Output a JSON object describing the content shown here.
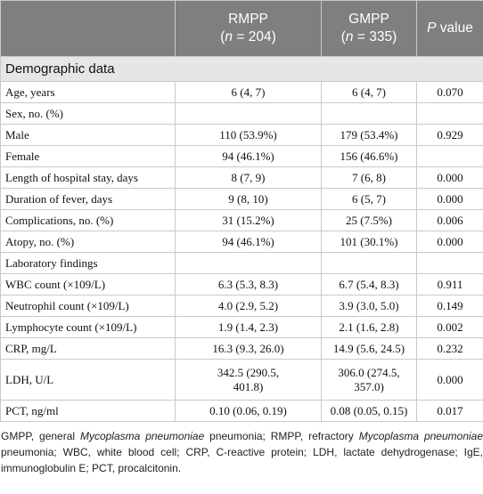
{
  "header": {
    "col1": "",
    "rmpp_line1": "RMPP",
    "rmpp_n": "n",
    "rmpp_line2_rest": " = 204)",
    "gmpp_line1": "GMPP",
    "gmpp_n": "n",
    "gmpp_line2_rest": " = 335)",
    "pvalue_p": "P",
    "pvalue_rest": " value"
  },
  "section": "Demographic data",
  "rows": [
    {
      "label": "Age, years",
      "rmpp": "6 (4, 7)",
      "gmpp": "6 (4, 7)",
      "p": "0.070"
    },
    {
      "label": "Sex, no. (%)",
      "rmpp": "",
      "gmpp": "",
      "p": ""
    },
    {
      "label": "Male",
      "rmpp": "110 (53.9%)",
      "gmpp": "179 (53.4%)",
      "p": "0.929"
    },
    {
      "label": "Female",
      "rmpp": "94 (46.1%)",
      "gmpp": "156 (46.6%)",
      "p": ""
    },
    {
      "label": "Length of hospital stay, days",
      "rmpp": "8 (7, 9)",
      "gmpp": "7 (6, 8)",
      "p": "0.000"
    },
    {
      "label": "Duration of fever, days",
      "rmpp": "9 (8, 10)",
      "gmpp": "6 (5, 7)",
      "p": "0.000"
    },
    {
      "label": "Complications, no. (%)",
      "rmpp": "31 (15.2%)",
      "gmpp": "25 (7.5%)",
      "p": "0.006"
    },
    {
      "label": "Atopy, no. (%)",
      "rmpp": "94 (46.1%)",
      "gmpp": "101 (30.1%)",
      "p": "0.000"
    },
    {
      "label": "Laboratory findings",
      "rmpp": "",
      "gmpp": "",
      "p": ""
    },
    {
      "label": "WBC count (×109/L)",
      "rmpp": "6.3 (5.3, 8.3)",
      "gmpp": "6.7 (5.4, 8.3)",
      "p": "0.911"
    },
    {
      "label": "Neutrophil count (×109/L)",
      "rmpp": "4.0 (2.9, 5.2)",
      "gmpp": "3.9 (3.0, 5.0)",
      "p": "0.149"
    },
    {
      "label": "Lymphocyte count (×109/L)",
      "rmpp": "1.9 (1.4, 2.3)",
      "gmpp": "2.1 (1.6, 2.8)",
      "p": "0.002"
    },
    {
      "label": "CRP, mg/L",
      "rmpp": "16.3 (9.3, 26.0)",
      "gmpp": "14.9 (5.6, 24.5)",
      "p": "0.232"
    },
    {
      "label": "LDH, U/L",
      "rmpp_l1": "342.5 (290.5,",
      "rmpp_l2": "401.8)",
      "gmpp_l1": "306.0 (274.5,",
      "gmpp_l2": "357.0)",
      "p": "0.000"
    },
    {
      "label": "PCT, ng/ml",
      "rmpp": "0.10 (0.06, 0.19)",
      "gmpp": "0.08 (0.05, 0.15)",
      "p": "0.017"
    }
  ],
  "footnote": {
    "part1": "GMPP, general ",
    "it1": "Mycoplasma pneumoniae",
    "part2": " pneumonia; RMPP, refractory ",
    "it2": "Mycoplasma pneumoniae",
    "part3": " pneumonia; WBC, white blood cell; CRP, C-reactive protein; LDH, lactate dehydrogenase; IgE, immunoglobulin E; PCT, procalcitonin."
  }
}
